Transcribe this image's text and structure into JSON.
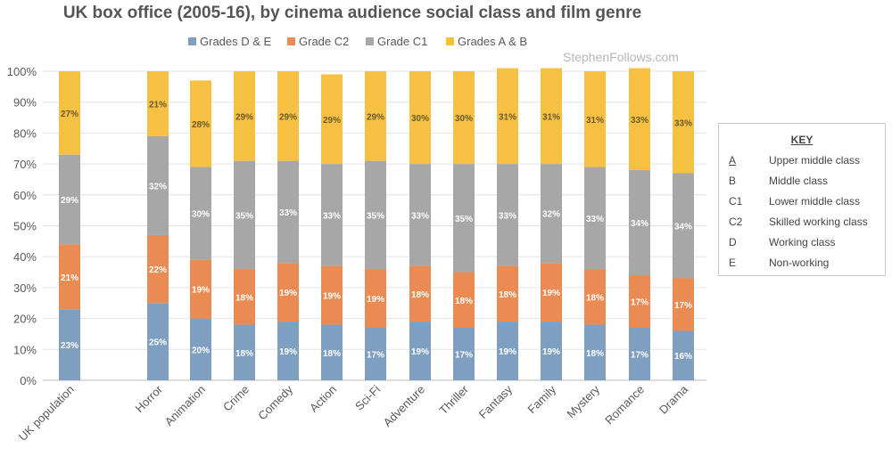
{
  "watermark": "StephenFollows.com",
  "chart_data": {
    "type": "bar",
    "stacked": true,
    "title": "UK box office (2005-16), by cinema audience social class and film genre",
    "categories": [
      "UK population",
      "Horror",
      "Animation",
      "Crime",
      "Comedy",
      "Action",
      "Sci-Fi",
      "Adventure",
      "Thriller",
      "Fantasy",
      "Family",
      "Mystery",
      "Romance",
      "Drama"
    ],
    "series": [
      {
        "name": "Grades D & E",
        "color": "#7e9fbf",
        "values": [
          23,
          25,
          20,
          18,
          19,
          18,
          17,
          19,
          17,
          19,
          19,
          18,
          17,
          16
        ],
        "labels": [
          "23%",
          "25%",
          "20%",
          "18%",
          "19%",
          "18%",
          "17%",
          "19%",
          "17%",
          "19%",
          "19%",
          "18%",
          "17%",
          "16%"
        ]
      },
      {
        "name": "Grade C2",
        "color": "#e98b53",
        "values": [
          21,
          22,
          19,
          18,
          19,
          19,
          19,
          18,
          18,
          18,
          19,
          18,
          17,
          17
        ],
        "labels": [
          "21%",
          "22%",
          "19%",
          "18%",
          "19%",
          "19%",
          "19%",
          "18%",
          "18%",
          "18%",
          "19%",
          "18%",
          "17%",
          "17%"
        ]
      },
      {
        "name": "Grade C1",
        "color": "#a7a7a7",
        "values": [
          29,
          32,
          30,
          35,
          33,
          33,
          35,
          33,
          35,
          33,
          32,
          33,
          34,
          34
        ],
        "labels": [
          "29%",
          "32%",
          "30%",
          "35%",
          "33%",
          "33%",
          "35%",
          "33%",
          "35%",
          "33%",
          "32%",
          "33%",
          "34%",
          "34%"
        ]
      },
      {
        "name": "Grades A & B",
        "color": "#f6c043",
        "values": [
          27,
          21,
          28,
          29,
          29,
          29,
          29,
          30,
          30,
          31,
          31,
          31,
          33,
          33
        ],
        "labels": [
          "27%",
          "21%",
          "28%",
          "29%",
          "29%",
          "29%",
          "29%",
          "30%",
          "30%",
          "31%",
          "31%",
          "31%",
          "33%",
          "33%"
        ]
      }
    ],
    "yticks": [
      "0%",
      "10%",
      "20%",
      "30%",
      "40%",
      "50%",
      "60%",
      "70%",
      "80%",
      "90%",
      "100%"
    ],
    "ylim": [
      0,
      100
    ],
    "grid": true,
    "legend_position": "top"
  },
  "key": {
    "title": "KEY",
    "rows": [
      {
        "code": "A",
        "desc": "Upper middle class"
      },
      {
        "code": "B",
        "desc": "Middle class"
      },
      {
        "code": "C1",
        "desc": "Lower middle class"
      },
      {
        "code": "C2",
        "desc": "Skilled working class"
      },
      {
        "code": "D",
        "desc": "Working class"
      },
      {
        "code": "E",
        "desc": "Non-working"
      }
    ]
  }
}
